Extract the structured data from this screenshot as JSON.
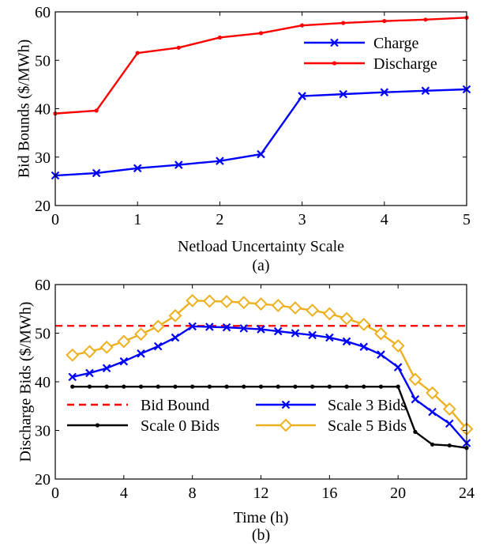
{
  "chart_data": [
    {
      "type": "line",
      "caption": "(a)",
      "xlabel": "Netload Uncertainty Scale",
      "ylabel": "Bid Bounds ($/MWh)",
      "xlim": [
        0,
        5
      ],
      "ylim": [
        20,
        60
      ],
      "xticks": [
        0,
        1,
        2,
        3,
        4,
        5
      ],
      "yticks": [
        20,
        30,
        40,
        50,
        60
      ],
      "grid": false,
      "legend_position": "top-right",
      "x": [
        0,
        0.5,
        1,
        1.5,
        2,
        2.5,
        3,
        3.5,
        4,
        4.5,
        5
      ],
      "series": [
        {
          "name": "Charge",
          "color": "#0000ff",
          "marker": "x",
          "values": [
            26.2,
            26.7,
            27.7,
            28.4,
            29.2,
            30.6,
            42.6,
            43.0,
            43.4,
            43.7,
            44.0
          ]
        },
        {
          "name": "Discharge",
          "color": "#ff0000",
          "marker": "dot",
          "values": [
            39.0,
            39.6,
            51.5,
            52.6,
            54.7,
            55.6,
            57.2,
            57.7,
            58.1,
            58.4,
            58.8
          ]
        }
      ]
    },
    {
      "type": "line",
      "caption": "(b)",
      "xlabel": "Time (h)",
      "ylabel": "Discharge Bids ($/MWh)",
      "xlim": [
        0,
        24
      ],
      "ylim": [
        20,
        60
      ],
      "xticks": [
        0,
        4,
        8,
        12,
        16,
        20,
        24
      ],
      "yticks": [
        20,
        30,
        40,
        50,
        60
      ],
      "grid": false,
      "legend_position": "bottom",
      "x": [
        1,
        2,
        3,
        4,
        5,
        6,
        7,
        8,
        9,
        10,
        11,
        12,
        13,
        14,
        15,
        16,
        17,
        18,
        19,
        20,
        21,
        22,
        23,
        24
      ],
      "series": [
        {
          "name": "Bid Bound",
          "color": "#ff0000",
          "marker": "none",
          "line_style": "dashed",
          "constant": 51.5,
          "x_range": [
            0,
            24
          ]
        },
        {
          "name": "Scale 3 Bids",
          "color": "#0000ff",
          "marker": "x",
          "values": [
            41.0,
            41.8,
            42.8,
            44.2,
            45.8,
            47.3,
            49.1,
            51.4,
            51.3,
            51.2,
            51.0,
            50.8,
            50.4,
            50.0,
            49.6,
            49.1,
            48.3,
            47.2,
            45.6,
            43.0,
            36.4,
            33.8,
            31.4,
            27.4
          ]
        },
        {
          "name": "Scale 0 Bids",
          "color": "#000000",
          "marker": "dot",
          "values": [
            39.0,
            39.0,
            39.0,
            39.0,
            39.0,
            39.0,
            39.0,
            39.0,
            39.0,
            39.0,
            39.0,
            39.0,
            39.0,
            39.0,
            39.0,
            39.0,
            39.0,
            39.0,
            39.0,
            39.0,
            29.7,
            27.1,
            26.9,
            26.4
          ]
        },
        {
          "name": "Scale 5 Bids",
          "color": "#edb120",
          "marker": "diamond",
          "values": [
            45.5,
            46.2,
            47.1,
            48.3,
            49.8,
            51.4,
            53.6,
            56.7,
            56.6,
            56.5,
            56.3,
            56.0,
            55.7,
            55.2,
            54.7,
            54.0,
            53.0,
            51.8,
            49.9,
            47.4,
            40.5,
            37.7,
            34.4,
            30.3
          ]
        }
      ]
    }
  ]
}
